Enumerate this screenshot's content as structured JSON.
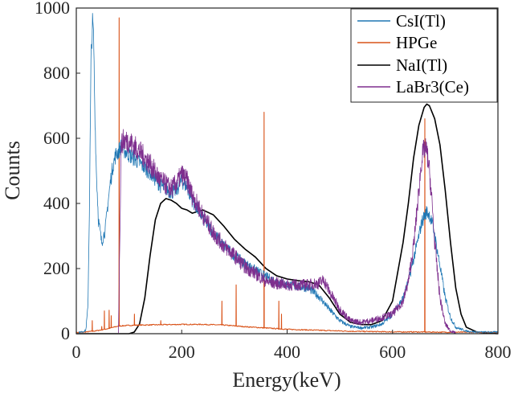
{
  "chart_data": {
    "type": "line",
    "xlabel": "Energy(keV)",
    "ylabel": "Counts",
    "xlim": [
      0,
      800
    ],
    "ylim": [
      0,
      1000
    ],
    "xticks": [
      0,
      200,
      400,
      600,
      800
    ],
    "yticks": [
      0,
      200,
      400,
      600,
      800,
      1000
    ],
    "grid": false,
    "legend_position": "top-right",
    "series": [
      {
        "name": "CsI(Tl)",
        "color": "#1f77b4",
        "x": [
          0,
          10,
          18,
          22,
          25,
          28,
          31,
          33,
          35,
          38,
          42,
          48,
          55,
          60,
          65,
          70,
          75,
          80,
          85,
          90,
          100,
          120,
          140,
          160,
          180,
          190,
          200,
          210,
          220,
          240,
          260,
          280,
          300,
          320,
          340,
          360,
          380,
          400,
          420,
          440,
          460,
          480,
          500,
          520,
          540,
          560,
          580,
          600,
          620,
          630,
          640,
          650,
          655,
          660,
          665,
          670,
          675,
          680,
          690,
          700,
          710,
          720,
          740,
          760,
          780,
          800
        ],
        "y": [
          5,
          5,
          10,
          80,
          400,
          850,
          960,
          900,
          700,
          500,
          350,
          280,
          320,
          400,
          470,
          520,
          550,
          560,
          575,
          565,
          550,
          525,
          495,
          455,
          435,
          440,
          470,
          450,
          410,
          355,
          310,
          270,
          240,
          215,
          195,
          175,
          160,
          150,
          145,
          140,
          115,
          75,
          40,
          22,
          18,
          20,
          30,
          60,
          110,
          160,
          230,
          300,
          340,
          360,
          375,
          365,
          340,
          300,
          210,
          110,
          50,
          20,
          8,
          5,
          5,
          5
        ]
      },
      {
        "name": "HPGe",
        "color": "#d95319",
        "baseline": {
          "x": [
            0,
            20,
            40,
            60,
            80,
            100,
            120,
            160,
            200,
            240,
            280,
            320,
            360,
            400,
            440,
            480,
            520,
            560,
            600,
            640,
            700,
            760,
            800
          ],
          "y": [
            2,
            4,
            8,
            14,
            22,
            24,
            25,
            26,
            27,
            27,
            25,
            20,
            16,
            12,
            10,
            8,
            6,
            5,
            4,
            4,
            3,
            3,
            3
          ]
        },
        "peaks": [
          {
            "x": 30,
            "y": 40
          },
          {
            "x": 48,
            "y": 22
          },
          {
            "x": 53,
            "y": 70
          },
          {
            "x": 62,
            "y": 72
          },
          {
            "x": 66,
            "y": 55
          },
          {
            "x": 81,
            "y": 970
          },
          {
            "x": 110,
            "y": 60
          },
          {
            "x": 160,
            "y": 40
          },
          {
            "x": 276,
            "y": 100
          },
          {
            "x": 303,
            "y": 150
          },
          {
            "x": 356,
            "y": 680
          },
          {
            "x": 384,
            "y": 100
          },
          {
            "x": 389,
            "y": 60
          },
          {
            "x": 661,
            "y": 660
          }
        ]
      },
      {
        "name": "NaI(Tl)",
        "color": "#000000",
        "x": [
          0,
          100,
          110,
          120,
          130,
          140,
          150,
          160,
          170,
          180,
          190,
          200,
          210,
          220,
          240,
          260,
          280,
          300,
          320,
          340,
          360,
          380,
          400,
          420,
          440,
          460,
          480,
          500,
          520,
          540,
          560,
          580,
          600,
          620,
          630,
          640,
          650,
          660,
          665,
          670,
          680,
          690,
          700,
          710,
          720,
          730,
          740,
          760,
          780,
          800
        ],
        "y": [
          0,
          0,
          5,
          30,
          110,
          240,
          350,
          400,
          415,
          410,
          400,
          385,
          380,
          370,
          380,
          365,
          330,
          290,
          260,
          235,
          200,
          178,
          168,
          163,
          160,
          150,
          110,
          60,
          35,
          28,
          28,
          40,
          100,
          280,
          400,
          540,
          640,
          695,
          705,
          700,
          660,
          580,
          440,
          280,
          140,
          60,
          20,
          5,
          2,
          0
        ]
      },
      {
        "name": "LaBr3(Ce)",
        "color": "#7e2f8e",
        "x": [
          80,
          85,
          90,
          100,
          120,
          140,
          160,
          180,
          190,
          200,
          210,
          220,
          240,
          260,
          280,
          300,
          320,
          340,
          360,
          380,
          400,
          420,
          440,
          460,
          470,
          480,
          500,
          520,
          540,
          560,
          580,
          600,
          620,
          630,
          640,
          650,
          655,
          660,
          665,
          670,
          675,
          680,
          690,
          700,
          710,
          720
        ],
        "y": [
          5,
          580,
          595,
          590,
          560,
          520,
          470,
          445,
          460,
          490,
          470,
          425,
          365,
          310,
          270,
          240,
          205,
          185,
          160,
          155,
          150,
          150,
          150,
          155,
          165,
          130,
          75,
          40,
          35,
          40,
          50,
          60,
          100,
          160,
          270,
          440,
          530,
          570,
          560,
          500,
          400,
          280,
          110,
          30,
          8,
          3
        ]
      }
    ]
  }
}
